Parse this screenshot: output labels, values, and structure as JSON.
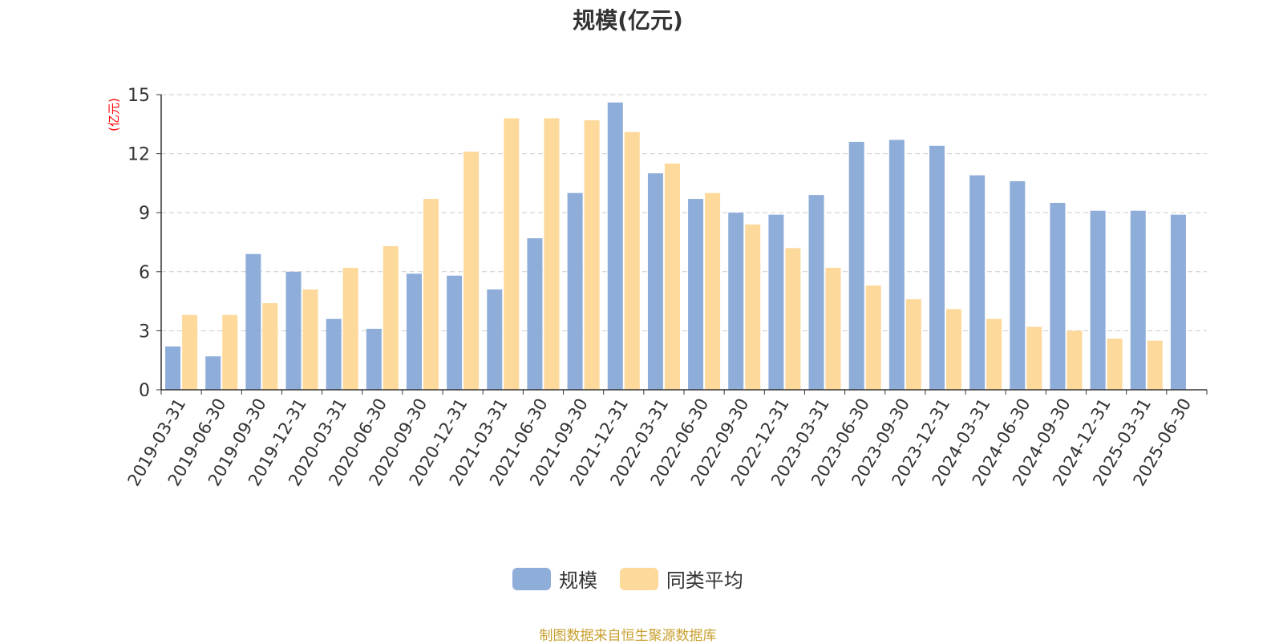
{
  "chart_data": {
    "type": "bar",
    "title": "规模(亿元)",
    "ylabel": "(亿元)",
    "ylim": [
      0,
      15
    ],
    "yticks": [
      0,
      3,
      6,
      9,
      12,
      15
    ],
    "grid": true,
    "legend_position": "bottom-center",
    "categories": [
      "2019-03-31",
      "2019-06-30",
      "2019-09-30",
      "2019-12-31",
      "2020-03-31",
      "2020-06-30",
      "2020-09-30",
      "2020-12-31",
      "2021-03-31",
      "2021-06-30",
      "2021-09-30",
      "2021-12-31",
      "2022-03-31",
      "2022-06-30",
      "2022-09-30",
      "2022-12-31",
      "2023-03-31",
      "2023-06-30",
      "2023-09-30",
      "2023-12-31",
      "2024-03-31",
      "2024-06-30",
      "2024-09-30",
      "2024-12-31",
      "2025-03-31",
      "2025-06-30"
    ],
    "series": [
      {
        "name": "规模",
        "color": "#8eadd9",
        "values": [
          2.2,
          1.7,
          6.9,
          6.0,
          3.6,
          3.1,
          5.9,
          5.8,
          5.1,
          7.7,
          10.0,
          14.6,
          11.0,
          9.7,
          9.0,
          8.9,
          9.9,
          12.6,
          12.7,
          12.4,
          10.9,
          10.6,
          9.5,
          9.1,
          9.1,
          8.9
        ]
      },
      {
        "name": "同类平均",
        "color": "#fdd99b",
        "values": [
          3.8,
          3.8,
          4.4,
          5.1,
          6.2,
          7.3,
          9.7,
          12.1,
          13.8,
          13.8,
          13.7,
          13.1,
          11.5,
          10.0,
          8.4,
          7.2,
          6.2,
          5.3,
          4.6,
          4.1,
          3.6,
          3.2,
          3.0,
          2.6,
          2.5,
          null
        ]
      }
    ]
  },
  "source_text": "制图数据来自恒生聚源数据库",
  "colors": {
    "grid": "#cccccc",
    "axis": "#333333",
    "ylabel": "#ff0000",
    "source": "#c8a030"
  }
}
